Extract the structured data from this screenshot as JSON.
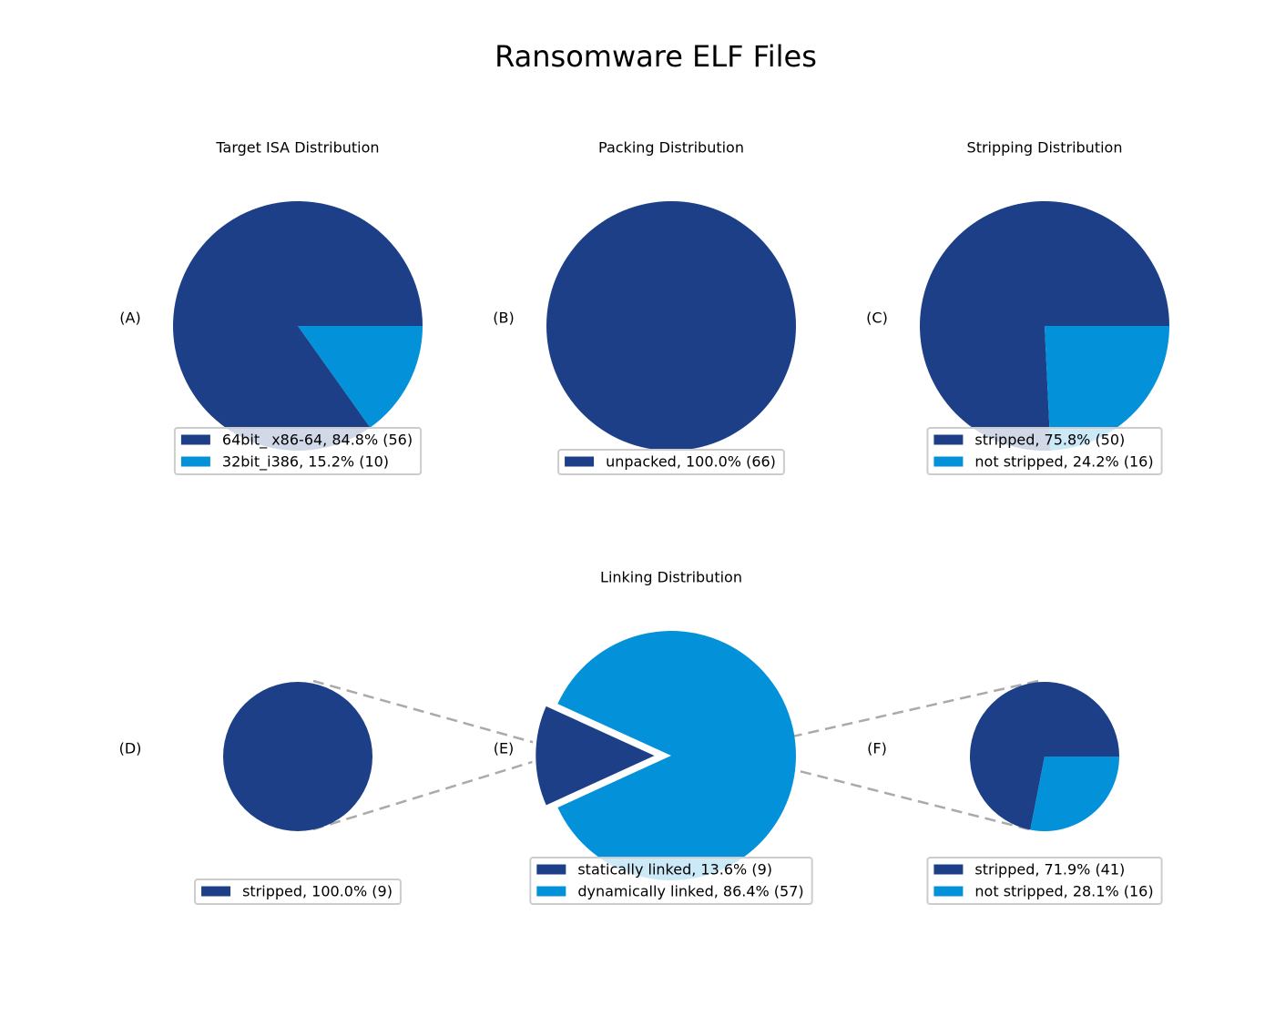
{
  "title": "Ransomware ELF Files",
  "chart_data": [
    {
      "type": "pie",
      "title": "Target ISA Distribution",
      "panel": "(A)",
      "categories": [
        "64bit_ x86-64, 84.8% (56)",
        "32bit_i386, 15.2% (10)"
      ],
      "values": [
        56,
        10
      ],
      "colors": [
        "#1c3f87",
        "#0391d9"
      ]
    },
    {
      "type": "pie",
      "title": "Packing Distribution",
      "panel": "(B)",
      "categories": [
        "unpacked, 100.0% (66)"
      ],
      "values": [
        66
      ],
      "colors": [
        "#1c3f87"
      ]
    },
    {
      "type": "pie",
      "title": "Stripping Distribution",
      "panel": "(C)",
      "categories": [
        "stripped, 75.8% (50)",
        "not stripped, 24.2% (16)"
      ],
      "values": [
        50,
        16
      ],
      "colors": [
        "#1c3f87",
        "#0391d9"
      ]
    },
    {
      "type": "pie",
      "panel": "(D)",
      "categories": [
        "stripped, 100.0% (9)"
      ],
      "values": [
        9
      ],
      "colors": [
        "#1c3f87"
      ]
    },
    {
      "type": "pie",
      "title": "Linking Distribution",
      "panel": "(E)",
      "categories": [
        "statically linked, 13.6% (9)",
        "dynamically linked, 86.4% (57)"
      ],
      "values": [
        9,
        57
      ],
      "colors": [
        "#1c3f87",
        "#0391d9"
      ],
      "startangle": 155.5,
      "explode": [
        0.1,
        0
      ]
    },
    {
      "type": "pie",
      "panel": "(F)",
      "categories": [
        "stripped, 71.9% (41)",
        "not stripped, 28.1% (16)"
      ],
      "values": [
        41,
        16
      ],
      "colors": [
        "#1c3f87",
        "#0391d9"
      ]
    }
  ]
}
